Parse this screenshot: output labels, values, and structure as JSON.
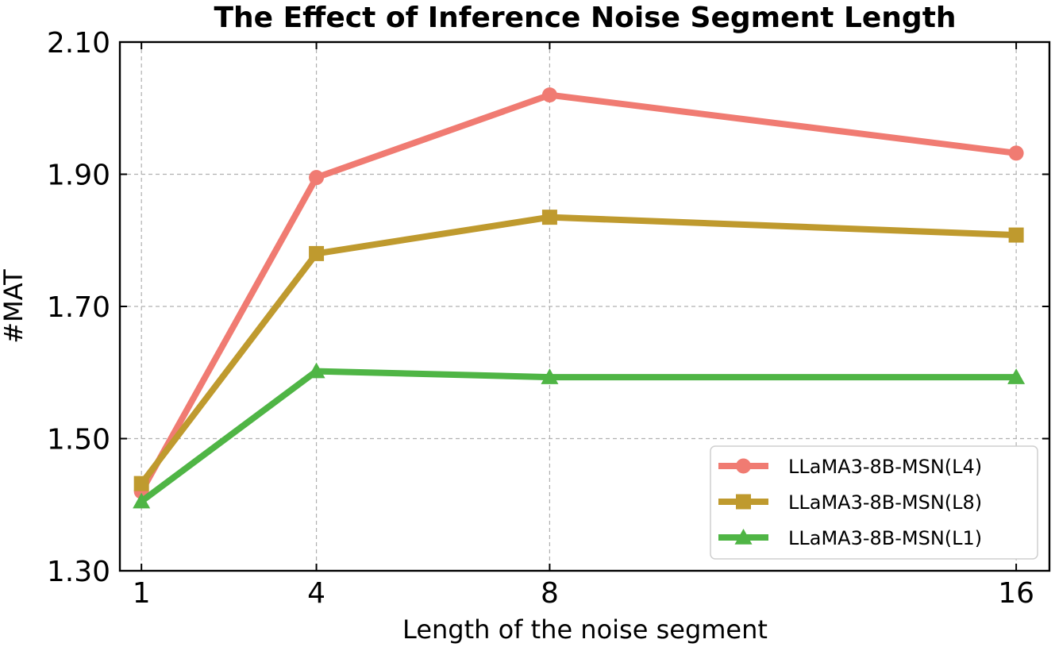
{
  "chart_data": {
    "type": "line",
    "title": "The Effect of Inference Noise Segment Length",
    "xlabel": "Length of the noise segment",
    "ylabel": "#MAT",
    "x": [
      1,
      4,
      8,
      16
    ],
    "xticks": [
      "1",
      "4",
      "8",
      "16"
    ],
    "ylim": [
      1.3,
      2.1
    ],
    "yticks": [
      "1.30",
      "1.50",
      "1.70",
      "1.90",
      "2.10"
    ],
    "grid": true,
    "legend_position": "lower-right",
    "series": [
      {
        "name": "LLaMA3-8B-MSN(L4)",
        "values": [
          1.42,
          1.895,
          2.02,
          1.932
        ],
        "color": "#f07b72",
        "marker": "circle"
      },
      {
        "name": "LLaMA3-8B-MSN(L8)",
        "values": [
          1.432,
          1.78,
          1.835,
          1.808
        ],
        "color": "#bf9a2e",
        "marker": "square"
      },
      {
        "name": "LLaMA3-8B-MSN(L1)",
        "values": [
          1.405,
          1.602,
          1.593,
          1.593
        ],
        "color": "#4fb545",
        "marker": "triangle"
      }
    ]
  }
}
